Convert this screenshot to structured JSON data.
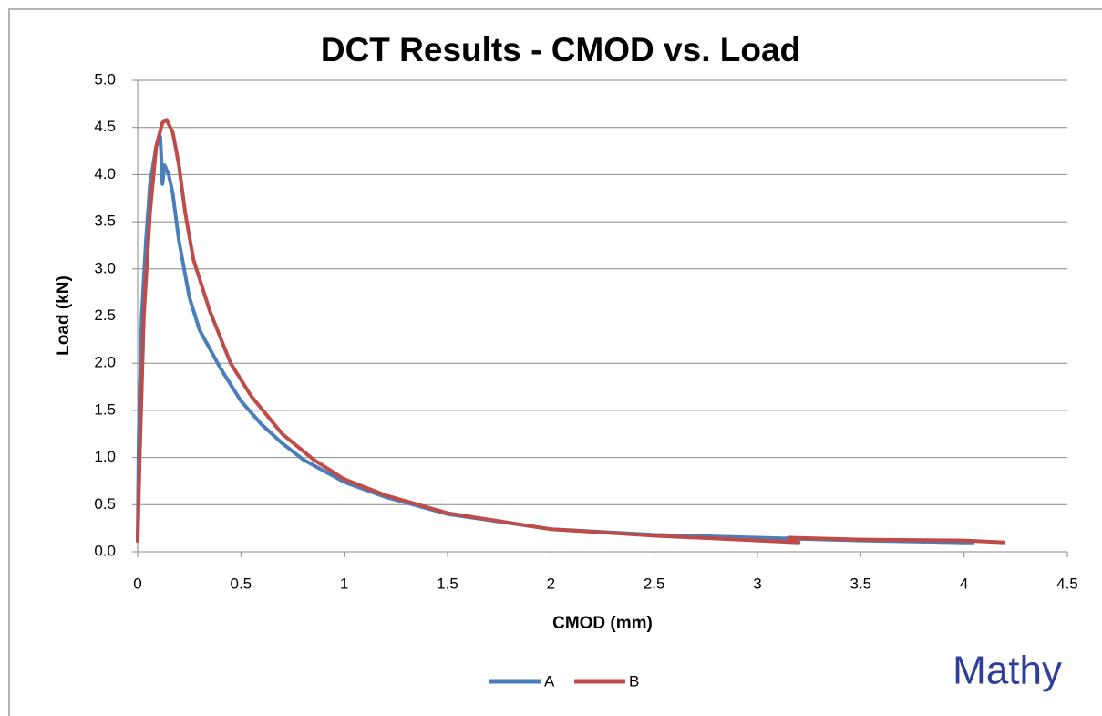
{
  "chart_data": {
    "type": "line",
    "title": "DCT Results - CMOD vs. Load",
    "x_label": "CMOD (mm)",
    "y_label": "Load (kN)",
    "watermark": "Mathy",
    "xlim": [
      0,
      4.5
    ],
    "xticks": [
      0,
      0.5,
      1,
      1.5,
      2,
      2.5,
      3,
      3.5,
      4,
      4.5
    ],
    "ylim": [
      0,
      5
    ],
    "yticks": [
      {
        "value": 0,
        "label": "0.0"
      },
      0.5,
      {
        "value": 1,
        "label": "1.0"
      },
      1.5,
      {
        "value": 2,
        "label": "2.0"
      },
      2.5,
      {
        "value": 3,
        "label": "3.0"
      },
      3.5,
      {
        "value": 4,
        "label": "4.0"
      },
      4.5,
      {
        "value": 5,
        "label": "5.0"
      }
    ],
    "grid": true,
    "legend": "bottom",
    "series": [
      {
        "name": "A",
        "color": "#4a7ebb",
        "x": [
          0,
          0.005,
          0.02,
          0.04,
          0.06,
          0.09,
          0.11,
          0.12,
          0.13,
          0.15,
          0.17,
          0.2,
          0.25,
          0.3,
          0.4,
          0.5,
          0.6,
          0.7,
          0.8,
          1.0,
          1.2,
          1.5,
          2.0,
          2.5,
          3.0,
          3.5,
          4.0,
          4.05
        ],
        "values": [
          0.1,
          1.2,
          2.5,
          3.3,
          3.9,
          4.3,
          4.4,
          3.9,
          4.1,
          4.0,
          3.8,
          3.3,
          2.7,
          2.35,
          1.95,
          1.6,
          1.35,
          1.15,
          0.98,
          0.74,
          0.58,
          0.4,
          0.24,
          0.18,
          0.15,
          0.12,
          0.1,
          0.1
        ]
      },
      {
        "name": "B",
        "color": "#be4b48",
        "x": [
          0,
          0.01,
          0.03,
          0.06,
          0.09,
          0.12,
          0.14,
          0.17,
          0.2,
          0.23,
          0.27,
          0.35,
          0.45,
          0.55,
          0.7,
          0.85,
          1.0,
          1.2,
          1.5,
          2.0,
          2.5,
          3.0,
          3.2,
          3.15,
          3.5,
          4.0,
          4.2
        ],
        "values": [
          0.1,
          1.0,
          2.5,
          3.6,
          4.3,
          4.55,
          4.58,
          4.45,
          4.1,
          3.6,
          3.1,
          2.55,
          2.0,
          1.65,
          1.25,
          0.98,
          0.77,
          0.6,
          0.41,
          0.24,
          0.17,
          0.12,
          0.1,
          0.15,
          0.13,
          0.12,
          0.1
        ]
      }
    ]
  }
}
